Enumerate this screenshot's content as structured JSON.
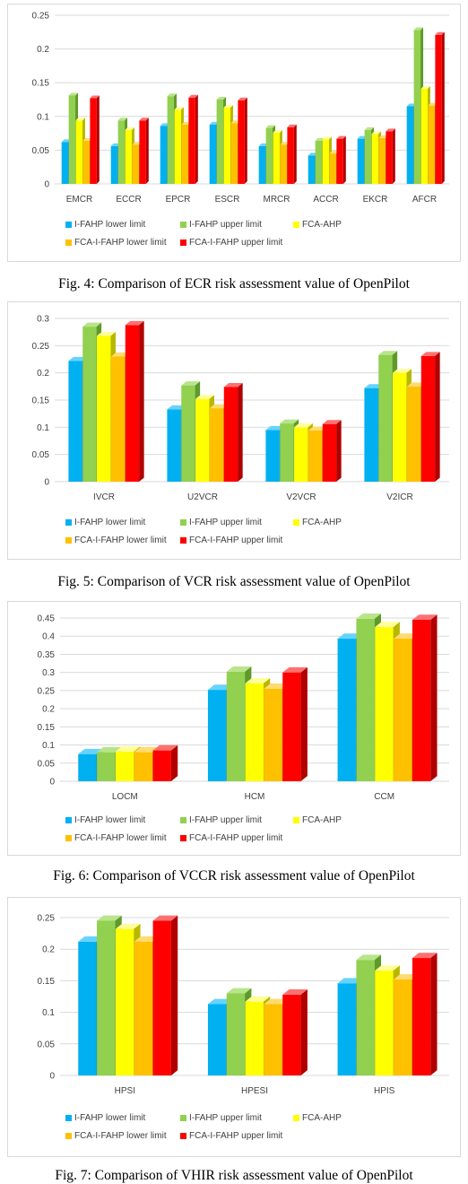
{
  "legend_labels": [
    "I-FAHP lower limit",
    "I-FAHP upper limit",
    "FCA-AHP",
    "FCA-I-FAHP lower limit",
    "FCA-I-FAHP upper limit"
  ],
  "colors": {
    "series": [
      "#00b0f0",
      "#92d050",
      "#ffff00",
      "#ffc000",
      "#ff0000"
    ],
    "series_side": [
      "#0077a8",
      "#5e9a2a",
      "#b8b800",
      "#b88800",
      "#b00000"
    ],
    "series_top": [
      "#66d3ff",
      "#b8e48a",
      "#ffff99",
      "#ffdb70",
      "#ff7070"
    ],
    "gridline": "#d9d9d9",
    "axis_text": "#404040"
  },
  "chart_data": [
    {
      "type": "bar",
      "categories": [
        "EMCR",
        "ECCR",
        "EPCR",
        "ESCR",
        "MRCR",
        "ACCR",
        "EKCR",
        "AFCR"
      ],
      "ylim": [
        0,
        0.25
      ],
      "yticks": [
        "0",
        "0.05",
        "0.1",
        "0.15",
        "0.2",
        "0.25"
      ],
      "grid": true,
      "legend_position": "bottom",
      "series": [
        {
          "name": "I-FAHP lower limit",
          "values": [
            0.062,
            0.056,
            0.086,
            0.088,
            0.056,
            0.042,
            0.067,
            0.115
          ]
        },
        {
          "name": "I-FAHP upper limit",
          "values": [
            0.131,
            0.094,
            0.13,
            0.125,
            0.083,
            0.064,
            0.08,
            0.228
          ]
        },
        {
          "name": "FCA-AHP",
          "values": [
            0.094,
            0.08,
            0.11,
            0.113,
            0.076,
            0.066,
            0.074,
            0.141
          ]
        },
        {
          "name": "FCA-I-FAHP lower limit",
          "values": [
            0.064,
            0.058,
            0.088,
            0.09,
            0.058,
            0.045,
            0.068,
            0.116
          ]
        },
        {
          "name": "FCA-I-FAHP upper limit",
          "values": [
            0.127,
            0.094,
            0.128,
            0.124,
            0.084,
            0.067,
            0.078,
            0.221
          ]
        }
      ],
      "caption": "Fig. 4: Comparison of ECR risk assessment value of OpenPilot"
    },
    {
      "type": "bar",
      "categories": [
        "IVCR",
        "U2VCR",
        "V2VCR",
        "V2ICR"
      ],
      "ylim": [
        0,
        0.3
      ],
      "yticks": [
        "0",
        "0.05",
        "0.1",
        "0.15",
        "0.2",
        "0.25",
        "0.3"
      ],
      "grid": true,
      "legend_position": "bottom",
      "series": [
        {
          "name": "I-FAHP lower limit",
          "values": [
            0.222,
            0.133,
            0.095,
            0.172
          ]
        },
        {
          "name": "I-FAHP upper limit",
          "values": [
            0.285,
            0.177,
            0.107,
            0.233
          ]
        },
        {
          "name": "FCA-AHP",
          "values": [
            0.268,
            0.152,
            0.1,
            0.2
          ]
        },
        {
          "name": "FCA-I-FAHP lower limit",
          "values": [
            0.23,
            0.135,
            0.094,
            0.175
          ]
        },
        {
          "name": "FCA-I-FAHP upper limit",
          "values": [
            0.288,
            0.174,
            0.106,
            0.231
          ]
        }
      ],
      "caption": "Fig. 5: Comparison of VCR risk assessment value of OpenPilot"
    },
    {
      "type": "bar",
      "categories": [
        "LOCM",
        "HCM",
        "CCM"
      ],
      "ylim": [
        0,
        0.45
      ],
      "yticks": [
        "0",
        "0.05",
        "0.1",
        "0.15",
        "0.2",
        "0.25",
        "0.3",
        "0.35",
        "0.4",
        "0.45"
      ],
      "grid": true,
      "legend_position": "bottom",
      "series": [
        {
          "name": "I-FAHP lower limit",
          "values": [
            0.075,
            0.252,
            0.393
          ]
        },
        {
          "name": "I-FAHP upper limit",
          "values": [
            0.08,
            0.302,
            0.448
          ]
        },
        {
          "name": "FCA-AHP",
          "values": [
            0.082,
            0.27,
            0.425
          ]
        },
        {
          "name": "FCA-I-FAHP lower limit",
          "values": [
            0.08,
            0.255,
            0.393
          ]
        },
        {
          "name": "FCA-I-FAHP upper limit",
          "values": [
            0.085,
            0.3,
            0.445
          ]
        }
      ],
      "caption": "Fig. 6: Comparison of VCCR risk assessment value of OpenPilot"
    },
    {
      "type": "bar",
      "categories": [
        "HPSI",
        "HPESI",
        "HPIS"
      ],
      "ylim": [
        0,
        0.25
      ],
      "yticks": [
        "0",
        "0.05",
        "0.1",
        "0.15",
        "0.2",
        "0.25"
      ],
      "grid": true,
      "legend_position": "bottom",
      "series": [
        {
          "name": "I-FAHP lower limit",
          "values": [
            0.212,
            0.113,
            0.146
          ]
        },
        {
          "name": "I-FAHP upper limit",
          "values": [
            0.245,
            0.13,
            0.183
          ]
        },
        {
          "name": "FCA-AHP",
          "values": [
            0.232,
            0.117,
            0.166
          ]
        },
        {
          "name": "FCA-I-FAHP lower limit",
          "values": [
            0.212,
            0.113,
            0.152
          ]
        },
        {
          "name": "FCA-I-FAHP upper limit",
          "values": [
            0.245,
            0.128,
            0.186
          ]
        }
      ],
      "caption": "Fig. 7: Comparison of VHIR risk assessment value of OpenPilot"
    }
  ]
}
